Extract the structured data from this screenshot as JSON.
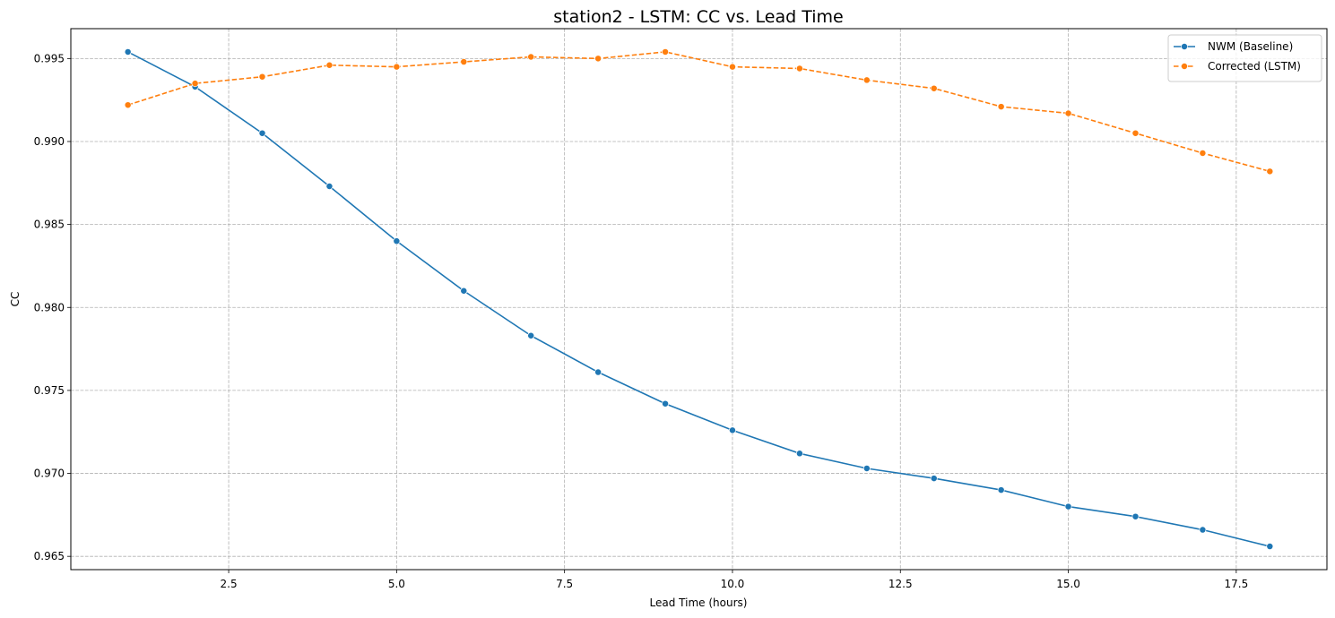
{
  "chart_data": {
    "type": "line",
    "title": "station2 - LSTM: CC vs. Lead Time",
    "xlabel": "Lead Time (hours)",
    "ylabel": "CC",
    "xlim": [
      0.15,
      18.85
    ],
    "ylim": [
      0.9642,
      0.9968
    ],
    "xticks": [
      2.5,
      5.0,
      7.5,
      10.0,
      12.5,
      15.0,
      17.5
    ],
    "xtick_labels": [
      "2.5",
      "5.0",
      "7.5",
      "10.0",
      "12.5",
      "15.0",
      "17.5"
    ],
    "yticks": [
      0.965,
      0.97,
      0.975,
      0.98,
      0.985,
      0.99,
      0.995
    ],
    "ytick_labels": [
      "0.965",
      "0.970",
      "0.975",
      "0.980",
      "0.985",
      "0.990",
      "0.995"
    ],
    "grid": true,
    "legend_position": "top-right",
    "x": [
      1,
      2,
      3,
      4,
      5,
      6,
      7,
      8,
      9,
      10,
      11,
      12,
      13,
      14,
      15,
      16,
      17,
      18
    ],
    "series": [
      {
        "name": "NWM (Baseline)",
        "color": "#1f77b4",
        "dash": "solid",
        "values": [
          0.9954,
          0.9933,
          0.9905,
          0.9873,
          0.984,
          0.981,
          0.9783,
          0.9761,
          0.9742,
          0.9726,
          0.9712,
          0.9703,
          0.9697,
          0.969,
          0.968,
          0.9674,
          0.9666,
          0.9656
        ]
      },
      {
        "name": "Corrected (LSTM)",
        "color": "#ff7f0e",
        "dash": "dashed",
        "values": [
          0.9922,
          0.9935,
          0.9939,
          0.9946,
          0.9945,
          0.9948,
          0.9951,
          0.995,
          0.9954,
          0.9945,
          0.9944,
          0.9937,
          0.9932,
          0.9921,
          0.9917,
          0.9905,
          0.9893,
          0.9882
        ]
      }
    ]
  }
}
